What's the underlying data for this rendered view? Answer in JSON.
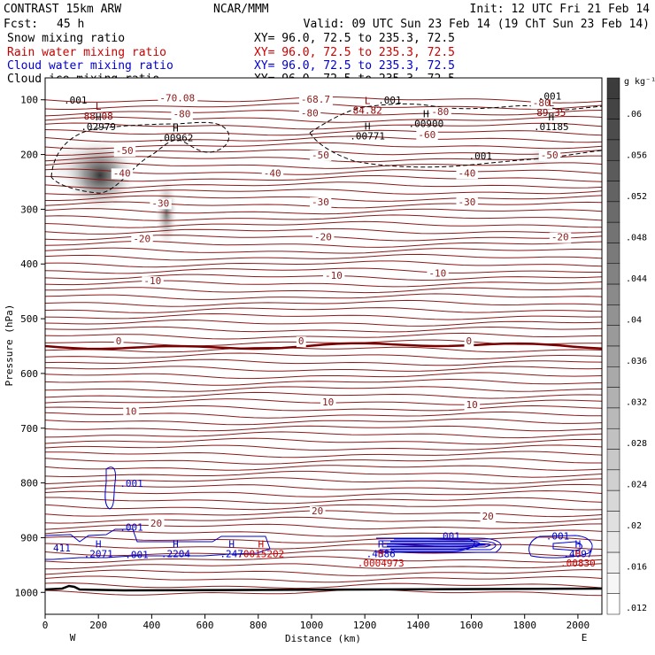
{
  "header": {
    "model": "CONTRAST 15km ARW",
    "org": "NCAR/MMM",
    "init": "Init: 12 UTC Fri 21 Feb 14",
    "fcst_label": "Fcst:",
    "fcst_value": "45 h",
    "valid": "Valid: 09 UTC Sun 23 Feb 14 (19 ChT Sun 23 Feb 14)"
  },
  "fields": [
    {
      "name": "Snow mixing ratio",
      "xy": "XY=  96.0, 72.5 to 235.3, 72.5",
      "color": "#000000"
    },
    {
      "name": "Rain water mixing ratio",
      "xy": "XY=  96.0, 72.5 to 235.3, 72.5",
      "color": "#cc0000"
    },
    {
      "name": "Cloud water mixing ratio",
      "xy": "XY=  96.0, 72.5 to 235.3, 72.5",
      "color": "#0000cc"
    },
    {
      "name": "Cloud ice mixing ratio",
      "xy": "XY=  96.0, 72.5 to 235.3, 72.5",
      "color": "#000000"
    }
  ],
  "chart_data": {
    "type": "cross-section",
    "xlabel": "Distance (km)",
    "ylabel": "Pressure (hPa)",
    "xlim": [
      0,
      2090
    ],
    "ylim": [
      1040,
      60
    ],
    "x_ticks": [
      0,
      200,
      400,
      600,
      800,
      1000,
      1200,
      1400,
      1600,
      1800,
      2000
    ],
    "y_ticks": [
      100,
      200,
      300,
      400,
      500,
      600,
      700,
      800,
      900,
      1000
    ],
    "x_end_labels": {
      "left": "W",
      "right": "E"
    },
    "colorbar": {
      "units": "g kg⁻¹",
      "ticks": [
        ".06",
        ".056",
        ".052",
        ".048",
        ".044",
        ".04",
        ".036",
        ".032",
        ".028",
        ".024",
        ".02",
        ".016",
        ".012"
      ]
    },
    "temperature_isotherm_labels": [
      {
        "label": "-70.08",
        "x": 430,
        "p": 103
      },
      {
        "label": "-68.7",
        "x": 960,
        "p": 105
      },
      {
        "label": "-80",
        "x": 480,
        "p": 132
      },
      {
        "label": "-80",
        "x": 960,
        "p": 130
      },
      {
        "label": "-80",
        "x": 1450,
        "p": 128
      },
      {
        "label": "-80",
        "x": 1830,
        "p": 112
      },
      {
        "label": "-60",
        "x": 1400,
        "p": 170
      },
      {
        "label": "-50",
        "x": 265,
        "p": 199
      },
      {
        "label": "-50",
        "x": 1000,
        "p": 207
      },
      {
        "label": "-50",
        "x": 1860,
        "p": 207
      },
      {
        "label": "-40",
        "x": 255,
        "p": 240
      },
      {
        "label": "-40",
        "x": 820,
        "p": 240
      },
      {
        "label": "-40",
        "x": 1550,
        "p": 240
      },
      {
        "label": "-30",
        "x": 400,
        "p": 295
      },
      {
        "label": "-30",
        "x": 1000,
        "p": 293
      },
      {
        "label": "-30",
        "x": 1550,
        "p": 293
      },
      {
        "label": "-20",
        "x": 330,
        "p": 360
      },
      {
        "label": "-20",
        "x": 1010,
        "p": 357
      },
      {
        "label": "-20",
        "x": 1900,
        "p": 357
      },
      {
        "label": "-10",
        "x": 370,
        "p": 437
      },
      {
        "label": "-10",
        "x": 1050,
        "p": 427
      },
      {
        "label": "-10",
        "x": 1440,
        "p": 423
      },
      {
        "label": "0",
        "x": 265,
        "p": 547
      },
      {
        "label": "0",
        "x": 950,
        "p": 547
      },
      {
        "label": "0",
        "x": 1580,
        "p": 547
      },
      {
        "label": "10",
        "x": 300,
        "p": 675
      },
      {
        "label": "10",
        "x": 1040,
        "p": 658
      },
      {
        "label": "10",
        "x": 1580,
        "p": 663
      },
      {
        "label": "20",
        "x": 395,
        "p": 880
      },
      {
        "label": "20",
        "x": 1000,
        "p": 857
      },
      {
        "label": "20",
        "x": 1640,
        "p": 867
      }
    ],
    "extrema": [
      {
        "type": "L",
        "value": "88.08",
        "x": 200,
        "p": 118,
        "color": "#8b0000"
      },
      {
        "type": "H",
        "value": ".02979",
        "x": 200,
        "p": 138,
        "color": "#000000"
      },
      {
        "type": "H",
        "value": ".00962",
        "x": 490,
        "p": 158,
        "color": "#000000"
      },
      {
        "type": "L",
        "value": "84.82",
        "x": 1210,
        "p": 108,
        "color": "#8b0000"
      },
      {
        "type": "H",
        "value": ".00771",
        "x": 1210,
        "p": 155,
        "color": "#000000"
      },
      {
        "type": "H",
        "value": ".00900",
        "x": 1430,
        "p": 132,
        "color": "#000000"
      },
      {
        "type": "L",
        "value": "89.35",
        "x": 1900,
        "p": 112,
        "color": "#8b0000"
      },
      {
        "type": "H",
        "value": ".01185",
        "x": 1900,
        "p": 138,
        "color": "#000000"
      },
      {
        "type": "H",
        "value": ".2071",
        "x": 200,
        "p": 918,
        "color": "#0000cc"
      },
      {
        "type": "H",
        "value": ".2204",
        "x": 490,
        "p": 918,
        "color": "#0000cc"
      },
      {
        "type": "H",
        "value": ".247",
        "x": 700,
        "p": 918,
        "color": "#0000cc"
      },
      {
        "type": "H",
        "value": ".0015202",
        "x": 810,
        "p": 918,
        "color": "#cc0000"
      },
      {
        "type": "H",
        "value": ".4386",
        "x": 1260,
        "p": 918,
        "color": "#0000cc"
      },
      {
        "type": "H",
        "value": ".0004973",
        "x": 1260,
        "p": 935,
        "color": "#cc0000"
      },
      {
        "type": "H",
        "value": ".4097",
        "x": 2000,
        "p": 918,
        "color": "#0000cc"
      },
      {
        "type": "H",
        "value": ".00830",
        "x": 2000,
        "p": 935,
        "color": "#cc0000"
      }
    ],
    "contour_labels": [
      {
        "label": ".001",
        "x": 70,
        "p": 107,
        "color": "#000000"
      },
      {
        "label": ".001",
        "x": 1250,
        "p": 107,
        "color": "#000000"
      },
      {
        "label": ".001",
        "x": 1590,
        "p": 209,
        "color": "#000000"
      },
      {
        "label": ".001",
        "x": 1850,
        "p": 100,
        "color": "#000000"
      },
      {
        "label": ".001",
        "x": 280,
        "p": 807,
        "color": "#0000cc"
      },
      {
        "label": ".001",
        "x": 280,
        "p": 887,
        "color": "#0000cc"
      },
      {
        "label": ".001",
        "x": 300,
        "p": 937,
        "color": "#0000cc"
      },
      {
        "label": ".001",
        "x": 1470,
        "p": 903,
        "color": "#0000cc"
      },
      {
        "label": ".001",
        "x": 1880,
        "p": 903,
        "color": "#0000cc"
      },
      {
        "label": "411",
        "x": 30,
        "p": 925,
        "color": "#0000cc"
      }
    ],
    "shading_max_regions": [
      {
        "x": 210,
        "p": 225,
        "value": 0.06
      },
      {
        "x": 460,
        "p": 295,
        "value": 0.04
      }
    ]
  }
}
